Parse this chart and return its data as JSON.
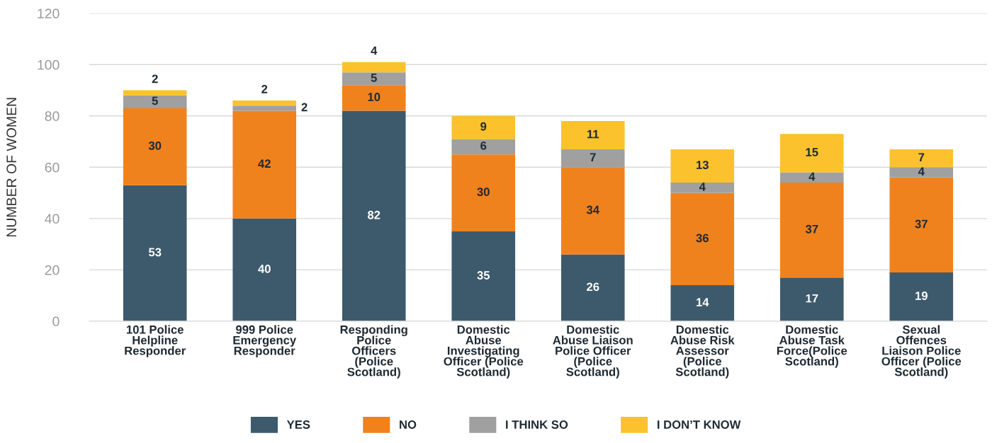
{
  "chart_data": {
    "type": "bar",
    "stacked": true,
    "ylabel": "NUMBER OF WOMEN",
    "categories": [
      "101 Police\nHelpline\nResponder",
      "999 Police\nEmergency\nResponder",
      "Responding\nPolice\nOfficers\n(Police\nScotland)",
      "Domestic\nAbuse\nInvestigating\nOfficer (Police\nScotland)",
      "Domestic\nAbuse Liaison\nPolice Officer\n(Police\nScotland)",
      "Domestic\nAbuse Risk\nAssessor\n(Police\nScotland)",
      "Domestic\nAbuse Task\nForce(Police\nScotland)",
      "Sexual\nOffences\nLiaison Police\nOfficer (Police\nScotland)"
    ],
    "series": [
      {
        "name": "YES",
        "color": "#3d5a6c",
        "values": [
          53,
          40,
          82,
          35,
          26,
          14,
          17,
          19
        ]
      },
      {
        "name": "NO",
        "color": "#f0821e",
        "values": [
          30,
          42,
          10,
          30,
          34,
          36,
          37,
          37
        ]
      },
      {
        "name": "I THINK SO",
        "color": "#a0a0a0",
        "values": [
          5,
          2,
          5,
          6,
          7,
          4,
          4,
          4
        ]
      },
      {
        "name": "I DON’T KNOW",
        "color": "#fcc22e",
        "values": [
          2,
          2,
          4,
          9,
          11,
          13,
          15,
          7
        ]
      }
    ],
    "ylim": [
      0,
      120
    ],
    "yticks": [
      0,
      20,
      40,
      60,
      80,
      100,
      120
    ],
    "grid": "y",
    "legend": "bottom",
    "data_labels": true
  }
}
